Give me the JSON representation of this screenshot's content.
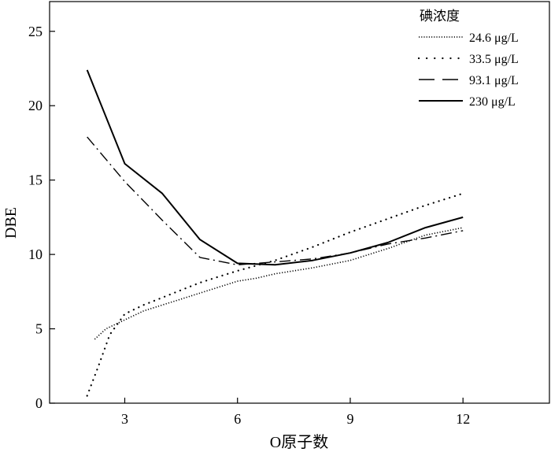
{
  "chart_data": {
    "type": "line",
    "xlabel": "O原子数",
    "ylabel": "DBE",
    "xlim": [
      1,
      14.3
    ],
    "ylim": [
      0,
      27
    ],
    "xticks": [
      3,
      6,
      9,
      12
    ],
    "yticks": [
      0,
      5,
      10,
      15,
      20,
      25
    ],
    "legend": {
      "title": "碘浓度",
      "position": "top-right"
    },
    "series": [
      {
        "name": "24.6 μg/L",
        "style": "dense-dotted",
        "x": [
          2.2,
          2.5,
          3,
          3.5,
          4,
          4.5,
          5,
          5.5,
          6,
          6.5,
          7,
          8,
          9,
          10,
          11,
          12
        ],
        "y": [
          4.3,
          5.0,
          5.6,
          6.2,
          6.6,
          7.0,
          7.4,
          7.8,
          8.2,
          8.4,
          8.7,
          9.1,
          9.6,
          10.4,
          11.3,
          11.8
        ]
      },
      {
        "name": "33.5 μg/L",
        "style": "sparse-dotted",
        "x": [
          2,
          2.3,
          2.6,
          3,
          3.5,
          4,
          4.5,
          5,
          5.5,
          6,
          7,
          8,
          9,
          10,
          11,
          12
        ],
        "y": [
          0.5,
          2.5,
          4.6,
          6.0,
          6.6,
          7.1,
          7.6,
          8.1,
          8.5,
          8.9,
          9.6,
          10.5,
          11.5,
          12.4,
          13.3,
          14.1
        ]
      },
      {
        "name": "93.1 μg/L",
        "style": "dashdot",
        "x": [
          2,
          3,
          4,
          5,
          6,
          7,
          8,
          9,
          10,
          11,
          12
        ],
        "y": [
          17.9,
          14.9,
          12.3,
          9.8,
          9.3,
          9.5,
          9.7,
          10.1,
          10.7,
          11.1,
          11.6
        ]
      },
      {
        "name": "230 μg/L",
        "style": "solid",
        "x": [
          2,
          3,
          4,
          5,
          6,
          7,
          8,
          9,
          10,
          11,
          12
        ],
        "y": [
          22.4,
          16.1,
          14.1,
          11.0,
          9.4,
          9.3,
          9.6,
          10.1,
          10.8,
          11.8,
          12.5
        ]
      }
    ]
  }
}
